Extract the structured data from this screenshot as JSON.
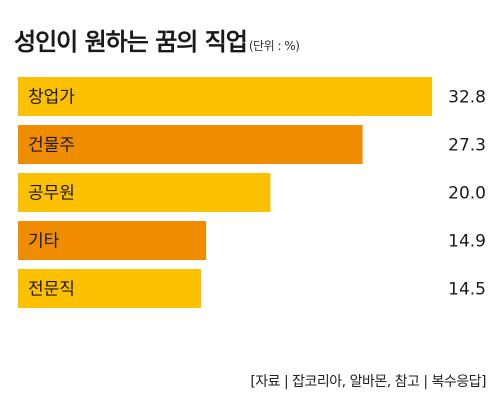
{
  "chart_data": {
    "type": "bar",
    "orientation": "horizontal",
    "title": "성인이 원하는 꿈의 직업",
    "unit": "(단위 : %)",
    "categories": [
      "창업가",
      "건물주",
      "공무원",
      "기타",
      "전문직"
    ],
    "values": [
      32.8,
      27.3,
      20.0,
      14.9,
      14.5
    ],
    "value_labels": [
      "32.8",
      "27.3",
      "20.0",
      "14.9",
      "14.5"
    ],
    "xlim": [
      0,
      32.8
    ],
    "grid": false,
    "legend": "none",
    "source": "[자료 | 잡코리아, 알바몬, 참고 | 복수응답]"
  },
  "colors": {
    "bar_light": "#fbc100",
    "bar_dark": "#ef8c00",
    "text": "#1a1a1a"
  }
}
